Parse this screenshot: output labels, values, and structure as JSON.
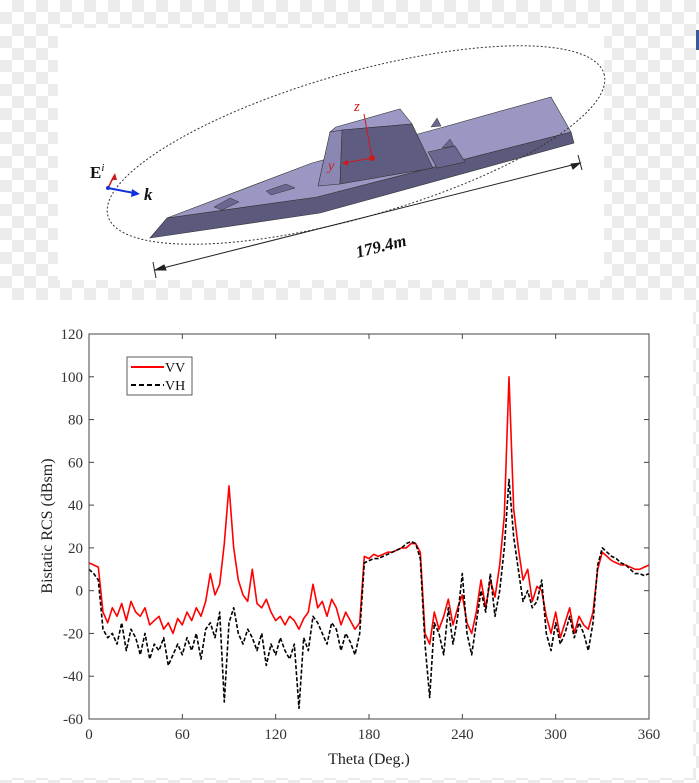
{
  "diagram": {
    "incident_field_label": "E",
    "incident_field_superscript": "i",
    "propagation_label": "k",
    "z_axis_label": "z",
    "y_axis_label": "y",
    "length_label": "179.4m",
    "colors": {
      "deck": "#9a97c2",
      "hull": "#5b5a7c",
      "axis": "#d0181c",
      "wave": "#1030e0"
    }
  },
  "chart_data": {
    "type": "line",
    "title": "",
    "xlabel": "Theta (Deg.)",
    "ylabel": "Bistatic RCS (dBsm)",
    "xlim": [
      0,
      360
    ],
    "ylim": [
      -60,
      120
    ],
    "xticks": [
      "0",
      "60",
      "120",
      "180",
      "240",
      "300",
      "360"
    ],
    "yticks": [
      "-60",
      "-40",
      "-20",
      "0",
      "20",
      "40",
      "60",
      "80",
      "100",
      "120"
    ],
    "grid": false,
    "legend_position": "top-left",
    "x_step": 3,
    "series": [
      {
        "name": "VV",
        "color": "#ff0000",
        "style": "solid",
        "values": [
          13,
          12,
          11,
          -10,
          -15,
          -8,
          -12,
          -6,
          -14,
          -5,
          -10,
          -12,
          -8,
          -16,
          -14,
          -12,
          -18,
          -15,
          -20,
          -13,
          -16,
          -10,
          -14,
          -8,
          -12,
          -5,
          8,
          -2,
          3,
          22,
          49,
          20,
          5,
          -2,
          -5,
          10,
          -6,
          -8,
          -4,
          -10,
          -14,
          -12,
          -16,
          -12,
          -14,
          -18,
          -13,
          -10,
          3,
          -8,
          -5,
          -12,
          -4,
          -8,
          -16,
          -10,
          -14,
          -18,
          -15,
          16,
          15,
          17,
          16,
          17,
          18,
          18,
          19,
          20,
          20,
          22,
          22,
          18,
          -20,
          -25,
          -10,
          -18,
          -12,
          -4,
          -16,
          -8,
          -2,
          -15,
          -20,
          -10,
          5,
          -8,
          5,
          -3,
          12,
          35,
          100,
          38,
          20,
          5,
          10,
          -5,
          2,
          0,
          -12,
          -20,
          -10,
          -22,
          -15,
          -8,
          -20,
          -12,
          -16,
          -18,
          -10,
          10,
          18,
          16,
          14,
          13,
          12,
          12,
          11,
          10,
          10,
          11,
          12
        ]
      },
      {
        "name": "VH",
        "color": "#000000",
        "style": "dashed",
        "values": [
          10,
          8,
          5,
          -18,
          -22,
          -20,
          -25,
          -15,
          -28,
          -18,
          -22,
          -30,
          -20,
          -32,
          -25,
          -28,
          -22,
          -35,
          -30,
          -25,
          -30,
          -22,
          -28,
          -20,
          -32,
          -18,
          -15,
          -22,
          -10,
          -52,
          -15,
          -8,
          -20,
          -25,
          -18,
          -22,
          -28,
          -20,
          -35,
          -25,
          -30,
          -22,
          -28,
          -32,
          -25,
          -55,
          -22,
          -28,
          -12,
          -15,
          -20,
          -25,
          -15,
          -18,
          -28,
          -20,
          -24,
          -30,
          -20,
          13,
          14,
          15,
          15,
          16,
          17,
          18,
          19,
          20,
          22,
          23,
          22,
          15,
          -25,
          -50,
          -15,
          -20,
          -30,
          -8,
          -25,
          -12,
          8,
          -20,
          -30,
          -15,
          0,
          -10,
          8,
          -12,
          0,
          20,
          52,
          25,
          10,
          -5,
          0,
          -8,
          -5,
          5,
          -20,
          -28,
          -15,
          -25,
          -20,
          -12,
          -22,
          -15,
          -20,
          -28,
          -15,
          12,
          20,
          18,
          16,
          15,
          13,
          12,
          10,
          8,
          8,
          7,
          8
        ]
      }
    ]
  }
}
